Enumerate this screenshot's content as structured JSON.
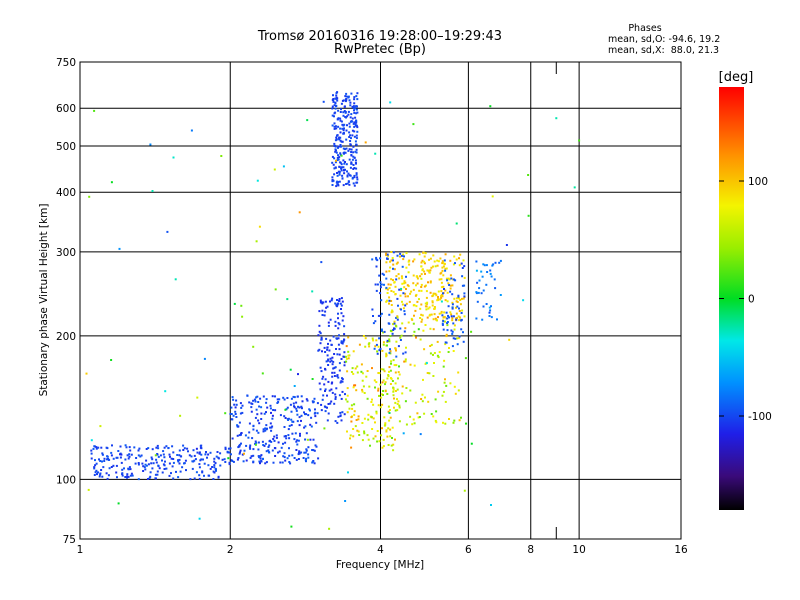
{
  "chart_data": {
    "type": "scatter",
    "title": "Tromsø 20160316 19:28:00–19:29:43",
    "subtitle": "RwPretec (Bp)",
    "xlabel": "Frequency [MHz]",
    "ylabel": "Stationary phase Virtual Height [km]",
    "x_scale": "log",
    "y_scale": "log",
    "xlim": [
      1,
      16
    ],
    "ylim": [
      75,
      750
    ],
    "grid": true,
    "x_ticks": [
      {
        "value": 1,
        "label": "1"
      },
      {
        "value": 2,
        "label": "2"
      },
      {
        "value": 4,
        "label": "4"
      },
      {
        "value": 6,
        "label": "6"
      },
      {
        "value": 8,
        "label": "8"
      },
      {
        "value": 10,
        "label": "10"
      },
      {
        "value": 16,
        "label": "16"
      }
    ],
    "y_ticks": [
      {
        "value": 75,
        "label": "75"
      },
      {
        "value": 100,
        "label": "100"
      },
      {
        "value": 200,
        "label": "200"
      },
      {
        "value": 300,
        "label": "300"
      },
      {
        "value": 400,
        "label": "400"
      },
      {
        "value": 500,
        "label": "500"
      },
      {
        "value": 600,
        "label": "600"
      },
      {
        "value": 750,
        "label": "750"
      }
    ],
    "stats": {
      "heading": "Phases",
      "line_o": "mean, sd,O: -94.6, 19.2",
      "line_x": "mean, sd,X:  88.0, 21.3"
    },
    "colorbar": {
      "title": "[deg]",
      "min": -180,
      "max": 180,
      "ticks": [
        {
          "value": 100,
          "label": "100"
        },
        {
          "value": 0,
          "label": "0"
        },
        {
          "value": -100,
          "label": "-100"
        }
      ]
    },
    "clusters": [
      {
        "f_min": 1.05,
        "f_max": 2.0,
        "h_min": 100,
        "h_max": 118,
        "phase": -100,
        "spread": 12,
        "count": 260
      },
      {
        "f_min": 2.0,
        "f_max": 3.0,
        "h_min": 108,
        "h_max": 150,
        "phase": -100,
        "spread": 15,
        "count": 300
      },
      {
        "f_min": 3.0,
        "f_max": 3.4,
        "h_min": 130,
        "h_max": 240,
        "phase": -105,
        "spread": 10,
        "count": 170
      },
      {
        "f_min": 3.4,
        "f_max": 4.3,
        "h_min": 115,
        "h_max": 200,
        "phase": 80,
        "spread": 60,
        "count": 170
      },
      {
        "f_min": 4.0,
        "f_max": 5.8,
        "h_min": 130,
        "h_max": 215,
        "phase": 70,
        "spread": 60,
        "count": 140
      },
      {
        "f_min": 4.1,
        "f_max": 5.9,
        "h_min": 215,
        "h_max": 300,
        "phase": 95,
        "spread": 30,
        "count": 270
      },
      {
        "f_min": 3.85,
        "f_max": 4.5,
        "h_min": 180,
        "h_max": 300,
        "phase": -95,
        "spread": 12,
        "count": 80
      },
      {
        "f_min": 5.3,
        "f_max": 5.9,
        "h_min": 190,
        "h_max": 290,
        "phase": -95,
        "spread": 12,
        "count": 60
      },
      {
        "f_min": 3.2,
        "f_max": 3.6,
        "h_min": 410,
        "h_max": 650,
        "phase": -100,
        "spread": 10,
        "count": 280
      },
      {
        "f_min": 6.2,
        "f_max": 7.0,
        "h_min": 215,
        "h_max": 290,
        "phase": -80,
        "spread": 25,
        "count": 40
      },
      {
        "f_min": 1.0,
        "f_max": 10.0,
        "h_min": 78,
        "h_max": 650,
        "phase": 0,
        "spread": 140,
        "count": 90
      }
    ]
  }
}
